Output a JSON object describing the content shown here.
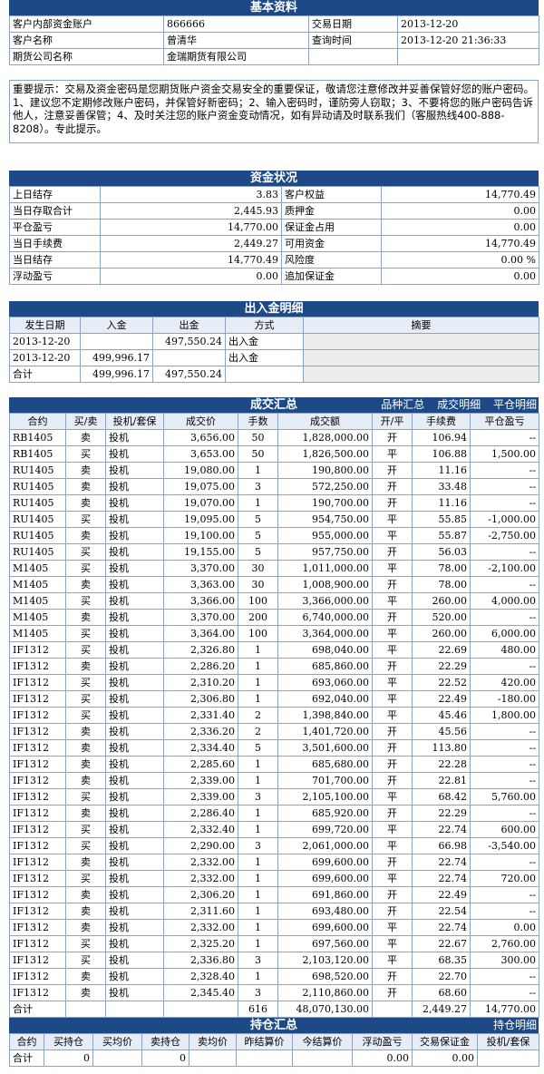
{
  "basic": {
    "title": "基本资料",
    "rows": [
      [
        "客户内部资金账户",
        "866666",
        "交易日期",
        "2013-12-20"
      ],
      [
        "客户名称",
        "曾清华",
        "查询时间",
        "2013-12-20 21:36:33"
      ],
      [
        "期货公司名称",
        "金瑞期货有限公司",
        "",
        ""
      ]
    ]
  },
  "notice": "重要提示：交易及资金密码是您期货账户资金交易安全的重要保证，敬请您注意修改并妥善保管好您的账户密码。1、建议您不定期修改账户密码，并保管好新密码；2、输入密码时，谨防旁人窃取；3、不要将您的账户密码告诉他人，注意妥善保管；4、及时关注您的账户资金变动情况，如有异动请及时联系我们（客服热线400-888-8208）。专此提示。",
  "funds": {
    "title": "资金状况",
    "rows": [
      [
        "上日结存",
        "3.83",
        "客户权益",
        "14,770.49"
      ],
      [
        "当日存取合计",
        "2,445.93",
        "质押金",
        "0.00"
      ],
      [
        "平仓盈亏",
        "14,770.00",
        "保证金占用",
        "0.00"
      ],
      [
        "当日手续费",
        "2,449.27",
        "可用资金",
        "14,770.49"
      ],
      [
        "当日结存",
        "14,770.49",
        "风险度",
        "0.00 %"
      ],
      [
        "浮动盈亏",
        "0.00",
        "追加保证金",
        "0.00"
      ]
    ]
  },
  "inout": {
    "title": "出入金明细",
    "headers": [
      "发生日期",
      "入金",
      "出金",
      "方式",
      "摘要"
    ],
    "rows": [
      [
        "2013-12-20",
        "",
        "497,550.24",
        "出入金",
        ""
      ],
      [
        "2013-12-20",
        "499,996.17",
        "",
        "出入金",
        ""
      ]
    ],
    "total": [
      "合计",
      "499,996.17",
      "497,550.24",
      "",
      ""
    ]
  },
  "trades": {
    "title": "成交汇总",
    "links": [
      "品种汇总",
      "成交明细",
      "平仓明细"
    ],
    "headers": [
      "合约",
      "买/卖",
      "投机/套保",
      "成交价",
      "手数",
      "成交额",
      "开/平",
      "手续费",
      "平仓盈亏"
    ],
    "rows": [
      [
        "RB1405",
        "卖",
        "投机",
        "3,656.00",
        "50",
        "1,828,000.00",
        "开",
        "106.94",
        "--"
      ],
      [
        "RB1405",
        "买",
        "投机",
        "3,653.00",
        "50",
        "1,826,500.00",
        "平",
        "106.88",
        "1,500.00"
      ],
      [
        "RU1405",
        "卖",
        "投机",
        "19,080.00",
        "1",
        "190,800.00",
        "开",
        "11.16",
        "--"
      ],
      [
        "RU1405",
        "卖",
        "投机",
        "19,075.00",
        "3",
        "572,250.00",
        "开",
        "33.48",
        "--"
      ],
      [
        "RU1405",
        "卖",
        "投机",
        "19,070.00",
        "1",
        "190,700.00",
        "开",
        "11.16",
        "--"
      ],
      [
        "RU1405",
        "买",
        "投机",
        "19,095.00",
        "5",
        "954,750.00",
        "平",
        "55.85",
        "-1,000.00"
      ],
      [
        "RU1405",
        "卖",
        "投机",
        "19,100.00",
        "5",
        "955,000.00",
        "平",
        "55.87",
        "-2,750.00"
      ],
      [
        "RU1405",
        "买",
        "投机",
        "19,155.00",
        "5",
        "957,750.00",
        "开",
        "56.03",
        "--"
      ],
      [
        "M1405",
        "买",
        "投机",
        "3,370.00",
        "30",
        "1,011,000.00",
        "平",
        "78.00",
        "-2,100.00"
      ],
      [
        "M1405",
        "卖",
        "投机",
        "3,363.00",
        "30",
        "1,008,900.00",
        "开",
        "78.00",
        "--"
      ],
      [
        "M1405",
        "买",
        "投机",
        "3,366.00",
        "100",
        "3,366,000.00",
        "平",
        "260.00",
        "4,000.00"
      ],
      [
        "M1405",
        "卖",
        "投机",
        "3,370.00",
        "200",
        "6,740,000.00",
        "开",
        "520.00",
        "--"
      ],
      [
        "M1405",
        "买",
        "投机",
        "3,364.00",
        "100",
        "3,364,000.00",
        "平",
        "260.00",
        "6,000.00"
      ],
      [
        "IF1312",
        "买",
        "投机",
        "2,326.80",
        "1",
        "698,040.00",
        "平",
        "22.69",
        "480.00"
      ],
      [
        "IF1312",
        "卖",
        "投机",
        "2,286.20",
        "1",
        "685,860.00",
        "开",
        "22.29",
        "--"
      ],
      [
        "IF1312",
        "买",
        "投机",
        "2,310.20",
        "1",
        "693,060.00",
        "平",
        "22.52",
        "420.00"
      ],
      [
        "IF1312",
        "买",
        "投机",
        "2,306.80",
        "1",
        "692,040.00",
        "平",
        "22.49",
        "-180.00"
      ],
      [
        "IF1312",
        "买",
        "投机",
        "2,331.40",
        "2",
        "1,398,840.00",
        "平",
        "45.46",
        "1,800.00"
      ],
      [
        "IF1312",
        "卖",
        "投机",
        "2,336.20",
        "2",
        "1,401,720.00",
        "开",
        "45.56",
        "--"
      ],
      [
        "IF1312",
        "卖",
        "投机",
        "2,334.40",
        "5",
        "3,501,600.00",
        "开",
        "113.80",
        "--"
      ],
      [
        "IF1312",
        "卖",
        "投机",
        "2,285.60",
        "1",
        "685,680.00",
        "开",
        "22.28",
        "--"
      ],
      [
        "IF1312",
        "卖",
        "投机",
        "2,339.00",
        "1",
        "701,700.00",
        "开",
        "22.81",
        "--"
      ],
      [
        "IF1312",
        "买",
        "投机",
        "2,339.00",
        "3",
        "2,105,100.00",
        "平",
        "68.42",
        "5,760.00"
      ],
      [
        "IF1312",
        "卖",
        "投机",
        "2,286.40",
        "1",
        "685,920.00",
        "开",
        "22.29",
        "--"
      ],
      [
        "IF1312",
        "买",
        "投机",
        "2,332.40",
        "1",
        "699,720.00",
        "平",
        "22.74",
        "600.00"
      ],
      [
        "IF1312",
        "买",
        "投机",
        "2,290.00",
        "3",
        "2,061,000.00",
        "平",
        "66.98",
        "-3,540.00"
      ],
      [
        "IF1312",
        "卖",
        "投机",
        "2,332.00",
        "1",
        "699,600.00",
        "开",
        "22.74",
        "--"
      ],
      [
        "IF1312",
        "买",
        "投机",
        "2,332.00",
        "1",
        "699,600.00",
        "平",
        "22.74",
        "720.00"
      ],
      [
        "IF1312",
        "卖",
        "投机",
        "2,306.20",
        "1",
        "691,860.00",
        "开",
        "22.49",
        "--"
      ],
      [
        "IF1312",
        "卖",
        "投机",
        "2,311.60",
        "1",
        "693,480.00",
        "开",
        "22.54",
        "--"
      ],
      [
        "IF1312",
        "卖",
        "投机",
        "2,332.00",
        "1",
        "699,600.00",
        "平",
        "22.74",
        "0.00"
      ],
      [
        "IF1312",
        "买",
        "投机",
        "2,325.20",
        "1",
        "697,560.00",
        "平",
        "22.67",
        "2,760.00"
      ],
      [
        "IF1312",
        "买",
        "投机",
        "2,336.80",
        "3",
        "2,103,120.00",
        "平",
        "68.35",
        "300.00"
      ],
      [
        "IF1312",
        "卖",
        "投机",
        "2,328.40",
        "1",
        "698,520.00",
        "开",
        "22.70",
        "--"
      ],
      [
        "IF1312",
        "卖",
        "投机",
        "2,345.40",
        "3",
        "2,110,860.00",
        "开",
        "68.60",
        "--"
      ]
    ],
    "total": [
      "合计",
      "",
      "",
      "",
      "616",
      "48,070,130.00",
      "",
      "2,449.27",
      "14,770.00"
    ]
  },
  "positions": {
    "title": "持仓汇总",
    "links": [
      "持仓明细"
    ],
    "headers": [
      "合约",
      "买持仓",
      "买均价",
      "卖持仓",
      "卖均价",
      "昨结算价",
      "今结算价",
      "浮动盈亏",
      "交易保证金",
      "投机/套保"
    ],
    "total": [
      "合计",
      "0",
      "",
      "0",
      "",
      "",
      "",
      "0.00",
      "0.00",
      ""
    ]
  },
  "colors": {
    "header_bg": "#1d4a86",
    "border": "#8aa3c6",
    "subheader_bg": "#e6edf7"
  }
}
